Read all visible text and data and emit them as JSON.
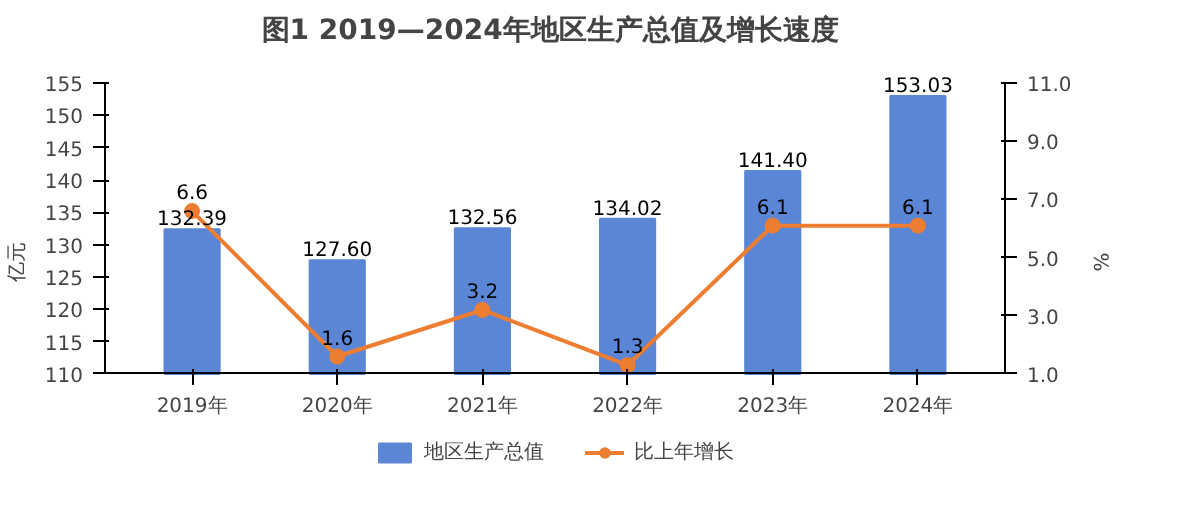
{
  "chart_data": {
    "type": "bar",
    "title": "图1  2019—2024年地区生产总值及增长速度",
    "ylabel": "亿元",
    "y2label": "%",
    "categories": [
      "2019年",
      "2020年",
      "2021年",
      "2022年",
      "2023年",
      "2024年"
    ],
    "series": [
      {
        "name": "地区生产总值",
        "color": "#5b86d6",
        "values": [
          132.39,
          127.6,
          132.56,
          134.02,
          141.4,
          153.03
        ],
        "value_labels": [
          "132.39",
          "127.60",
          "132.56",
          "134.02",
          "141.40",
          "153.03"
        ]
      },
      {
        "name": "比上年增长",
        "type": "line",
        "axis": "y2",
        "color": "#ed7d31",
        "marker": "circle",
        "values": [
          6.6,
          1.6,
          3.2,
          1.3,
          6.1,
          6.1
        ],
        "value_labels": [
          "6.6",
          "1.6",
          "3.2",
          "1.3",
          "6.1",
          "6.1"
        ]
      }
    ],
    "ylim": [
      110,
      155
    ],
    "yticks": [
      110,
      115,
      120,
      125,
      130,
      135,
      140,
      145,
      150,
      155
    ],
    "y2lim": [
      1.0,
      11.0
    ],
    "y2ticks": [
      {
        "value": 1.0,
        "label": "1.0"
      },
      {
        "value": 3.0,
        "label": "3.0"
      },
      {
        "value": 5.0,
        "label": "5.0"
      },
      {
        "value": 7.0,
        "label": "7.0"
      },
      {
        "value": 9.0,
        "label": "9.0"
      },
      {
        "value": 11.0,
        "label": "11.0"
      }
    ],
    "legend": "bottom",
    "grid": false
  }
}
